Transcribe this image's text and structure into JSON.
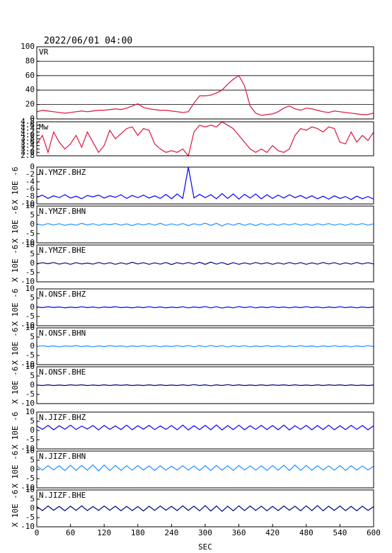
{
  "chart_data": {
    "type": "line",
    "title": "2022/06/01 04:00",
    "xlabel": "SEC",
    "x": [
      0,
      10,
      20,
      30,
      40,
      50,
      60,
      70,
      80,
      90,
      100,
      110,
      120,
      130,
      140,
      150,
      160,
      170,
      180,
      190,
      200,
      210,
      220,
      230,
      240,
      250,
      260,
      270,
      280,
      290,
      300,
      310,
      320,
      330,
      340,
      350,
      360,
      370,
      380,
      390,
      400,
      410,
      420,
      430,
      440,
      450,
      460,
      470,
      480,
      490,
      500,
      510,
      520,
      530,
      540,
      550,
      560,
      570,
      580,
      590,
      600
    ],
    "xlim": [
      0,
      600
    ],
    "xticks": [
      0,
      60,
      120,
      180,
      240,
      300,
      360,
      420,
      480,
      540,
      600
    ],
    "panels": [
      {
        "label": "VR",
        "ylim": [
          0,
          100
        ],
        "yticks": [
          0,
          20,
          40,
          60,
          80,
          100
        ],
        "grid": true,
        "series": [
          {
            "color": "#dc143c",
            "values": [
              10,
              12,
              11,
              10,
              9,
              8,
              9,
              10,
              11,
              10,
              11,
              12,
              12,
              13,
              14,
              13,
              15,
              18,
              21,
              16,
              14,
              13,
              12,
              12,
              11,
              10,
              9,
              10,
              22,
              32,
              32,
              33,
              36,
              40,
              48,
              55,
              60,
              46,
              18,
              8,
              5,
              6,
              7,
              10,
              15,
              18,
              14,
              12,
              15,
              14,
              12,
              10,
              9,
              11,
              10,
              9,
              8,
              7,
              6,
              6,
              8
            ]
          }
        ]
      },
      {
        "label": "Mw",
        "ylim": [
          2.8,
          4.8
        ],
        "yticks": [
          2.8,
          {
            "value": 3,
            "label": "3.0"
          },
          3.2,
          3.4,
          3.6,
          3.8,
          {
            "value": 4,
            "label": "4.0"
          },
          4.2,
          4.4,
          4.6,
          4.8
        ],
        "grid": false,
        "series": [
          {
            "color": "#dc143c",
            "values": [
              3.5,
              4.0,
              3.0,
              4.2,
              3.6,
              3.2,
              3.5,
              4.0,
              3.3,
              4.2,
              3.6,
              3.0,
              3.4,
              4.3,
              3.8,
              4.1,
              4.4,
              4.5,
              4.0,
              4.4,
              4.3,
              3.5,
              3.2,
              3.0,
              3.1,
              3.0,
              3.2,
              2.8,
              4.2,
              4.6,
              4.5,
              4.6,
              4.5,
              4.8,
              4.6,
              4.4,
              4.0,
              3.6,
              3.2,
              3.0,
              3.2,
              3.0,
              3.4,
              3.1,
              3.0,
              3.2,
              4.0,
              4.4,
              4.3,
              4.5,
              4.4,
              4.2,
              4.5,
              4.4,
              3.6,
              3.5,
              4.2,
              3.6,
              4.0,
              3.7,
              4.2
            ]
          }
        ]
      },
      {
        "label": "N.YMZF.BHZ",
        "ylabel": "X 10E -6",
        "ylim": [
          -10,
          0
        ],
        "yticks": [
          -10,
          -8,
          -6,
          -4,
          -2,
          0
        ],
        "grid": false,
        "series": [
          {
            "color": "#0000ff",
            "values": [
              -8.2,
              -7.6,
              -8.5,
              -7.8,
              -8.3,
              -7.5,
              -8.4,
              -7.9,
              -8.6,
              -7.7,
              -8.1,
              -7.6,
              -8.4,
              -7.8,
              -8.2,
              -7.5,
              -8.5,
              -7.7,
              -8.3,
              -7.6,
              -8.4,
              -7.8,
              -8.5,
              -7.4,
              -8.6,
              -7.3,
              -8.5,
              0,
              -8.4,
              -7.4,
              -8.3,
              -7.5,
              -8.6,
              -7.2,
              -8.5,
              -7.3,
              -8.7,
              -7.4,
              -8.4,
              -7.3,
              -8.6,
              -7.5,
              -8.5,
              -7.6,
              -8.4,
              -7.5,
              -8.3,
              -7.7,
              -8.5,
              -7.8,
              -8.6,
              -7.9,
              -8.7,
              -7.8,
              -8.5,
              -8.0,
              -8.8,
              -7.9,
              -8.6,
              -8.0,
              -8.7
            ]
          }
        ]
      },
      {
        "label": "N.YMZF.BHN",
        "ylabel": "X 10E -6",
        "ylim": [
          -10,
          10
        ],
        "yticks": [
          -10,
          -5,
          0,
          5,
          10
        ],
        "grid": false,
        "series": [
          {
            "color": "#1e90ff",
            "values": [
              0.3,
              -0.4,
              0.5,
              -0.3,
              0.4,
              -0.5,
              0.2,
              -0.4,
              0.6,
              -0.3,
              0.4,
              -0.5,
              0.3,
              -0.2,
              0.5,
              -0.4,
              0.3,
              -0.6,
              0.4,
              -0.3,
              0.5,
              -0.4,
              0.6,
              -0.5,
              0.3,
              -0.4,
              0.5,
              -0.6,
              0.4,
              -0.3,
              0.7,
              -0.5,
              0.6,
              -0.8,
              0.5,
              -0.4,
              0.6,
              -0.5,
              0.4,
              -0.6,
              0.5,
              -0.4,
              0.3,
              -0.5,
              0.4,
              -0.3,
              0.5,
              -0.4,
              0.3,
              -0.5,
              0.4,
              -0.3,
              0.5,
              -0.4,
              0.3,
              -0.5,
              0.4,
              -0.3,
              0.5,
              -0.4,
              0.3
            ]
          }
        ]
      },
      {
        "label": "N.YMZF.BHE",
        "ylabel": "X 10E -6",
        "ylim": [
          -10,
          10
        ],
        "yticks": [
          -10,
          -5,
          0,
          5,
          10
        ],
        "grid": false,
        "series": [
          {
            "color": "#000080",
            "values": [
              -0.3,
              0.4,
              -0.2,
              0.5,
              -0.4,
              0.3,
              -0.5,
              0.4,
              -0.3,
              0.2,
              -0.4,
              0.5,
              -0.3,
              0.4,
              -0.5,
              0.3,
              -0.4,
              0.6,
              -0.3,
              0.4,
              -0.5,
              0.3,
              -0.4,
              0.5,
              -0.6,
              0.4,
              -0.3,
              0.5,
              -0.4,
              0.6,
              -0.5,
              0.7,
              -0.4,
              0.5,
              -0.6,
              0.4,
              -0.5,
              0.3,
              -0.4,
              0.5,
              -0.3,
              0.4,
              -0.5,
              0.3,
              -0.4,
              0.5,
              -0.3,
              0.4,
              -0.5,
              0.3,
              -0.4,
              0.5,
              -0.3,
              0.4,
              -0.5,
              0.3,
              -0.4,
              0.5,
              -0.3,
              0.4,
              -0.3
            ]
          }
        ]
      },
      {
        "label": "N.ONSF.BHZ",
        "ylabel": "X 10E -6",
        "ylim": [
          -10,
          10
        ],
        "yticks": [
          -10,
          -5,
          0,
          5,
          10
        ],
        "grid": false,
        "series": [
          {
            "color": "#0000ff",
            "values": [
              0.2,
              -0.2,
              0.3,
              -0.1,
              0.2,
              -0.3,
              0.1,
              -0.2,
              0.3,
              -0.2,
              0.2,
              -0.3,
              0.2,
              -0.1,
              0.3,
              -0.2,
              0.1,
              -0.3,
              0.2,
              -0.2,
              0.3,
              -0.2,
              0.2,
              -0.3,
              0.1,
              -0.2,
              0.3,
              -0.3,
              0.2,
              -0.2,
              0.4,
              -0.3,
              0.3,
              -0.4,
              0.2,
              -0.3,
              0.4,
              -0.2,
              0.3,
              -0.3,
              0.2,
              -0.2,
              0.3,
              -0.2,
              0.2,
              -0.3,
              0.2,
              -0.2,
              0.3,
              -0.2,
              0.2,
              -0.3,
              0.2,
              -0.2,
              0.3,
              -0.2,
              0.2,
              -0.3,
              0.2,
              -0.2,
              0.2
            ]
          }
        ]
      },
      {
        "label": "N.ONSF.BHN",
        "ylabel": "X 10E -6",
        "ylim": [
          -10,
          10
        ],
        "yticks": [
          -10,
          -5,
          0,
          5,
          10
        ],
        "grid": false,
        "series": [
          {
            "color": "#1e90ff",
            "values": [
              -0.2,
              0.3,
              -0.2,
              0.2,
              -0.3,
              0.2,
              -0.1,
              0.3,
              -0.2,
              0.2,
              -0.3,
              0.2,
              -0.2,
              0.3,
              -0.1,
              0.2,
              -0.3,
              0.2,
              -0.2,
              0.3,
              -0.2,
              0.3,
              -0.3,
              0.2,
              -0.2,
              0.3,
              -0.2,
              0.4,
              -0.3,
              0.3,
              -0.3,
              0.4,
              -0.2,
              0.3,
              -0.4,
              0.3,
              -0.2,
              0.3,
              -0.3,
              0.2,
              -0.2,
              0.3,
              -0.2,
              0.2,
              -0.3,
              0.2,
              -0.2,
              0.3,
              -0.2,
              0.2,
              -0.3,
              0.2,
              -0.2,
              0.3,
              -0.2,
              0.2,
              -0.3,
              0.2,
              -0.2,
              0.3,
              -0.2
            ]
          }
        ]
      },
      {
        "label": "N.ONSF.BHE",
        "ylabel": "X 10E -6",
        "ylim": [
          -10,
          10
        ],
        "yticks": [
          -10,
          -5,
          0,
          5,
          10
        ],
        "grid": false,
        "series": [
          {
            "color": "#000080",
            "values": [
              0.1,
              -0.2,
              0.2,
              -0.2,
              0.1,
              -0.2,
              0.2,
              -0.1,
              0.2,
              -0.2,
              0.1,
              -0.2,
              0.2,
              -0.2,
              0.2,
              -0.1,
              0.2,
              -0.2,
              0.1,
              -0.2,
              0.2,
              -0.2,
              0.2,
              -0.2,
              0.1,
              -0.2,
              0.2,
              -0.2,
              0.3,
              -0.2,
              0.2,
              -0.3,
              0.2,
              -0.2,
              0.3,
              -0.2,
              0.2,
              -0.2,
              0.1,
              -0.2,
              0.2,
              -0.2,
              0.2,
              -0.1,
              0.2,
              -0.2,
              0.2,
              -0.2,
              0.1,
              -0.2,
              0.2,
              -0.2,
              0.2,
              -0.1,
              0.2,
              -0.2,
              0.2,
              -0.2,
              0.1,
              -0.2,
              0.1
            ]
          }
        ]
      },
      {
        "label": "N.JIZF.BHZ",
        "ylabel": "X 10E -6",
        "ylim": [
          -10,
          10
        ],
        "yticks": [
          -10,
          -5,
          0,
          5,
          10
        ],
        "grid": false,
        "series": [
          {
            "color": "#0000ff",
            "values": [
              2.5,
              0.6,
              2.8,
              0.4,
              2.6,
              0.7,
              2.9,
              0.5,
              2.4,
              0.8,
              2.7,
              0.3,
              2.8,
              0.6,
              2.5,
              0.5,
              2.9,
              0.4,
              2.6,
              0.7,
              2.8,
              0.5,
              2.5,
              0.6,
              2.7,
              0.4,
              2.9,
              0.3,
              2.6,
              0.5,
              2.8,
              0.4,
              3.0,
              0.3,
              2.7,
              0.5,
              2.9,
              0.4,
              2.6,
              0.6,
              2.8,
              0.5,
              2.7,
              0.4,
              2.9,
              0.3,
              2.6,
              0.6,
              2.8,
              0.4,
              2.7,
              0.5,
              2.9,
              0.4,
              2.6,
              0.5,
              2.8,
              0.6,
              2.7,
              0.4,
              2.6
            ]
          }
        ]
      },
      {
        "label": "N.JIZF.BHN",
        "ylabel": "X 10E -6",
        "ylim": [
          -10,
          10
        ],
        "yticks": [
          -10,
          -5,
          0,
          5,
          10
        ],
        "grid": false,
        "series": [
          {
            "color": "#1e90ff",
            "values": [
              1.9,
              -0.4,
              2.1,
              -0.3,
              2.0,
              -0.6,
              2.3,
              -0.5,
              2.2,
              -0.4,
              2.5,
              -0.8,
              2.4,
              -0.6,
              2.2,
              -0.5,
              2.0,
              -0.4,
              2.1,
              -0.3,
              1.9,
              -0.5,
              2.0,
              -0.4,
              1.8,
              -0.3,
              2.0,
              -0.4,
              1.9,
              -0.5,
              2.1,
              -0.6,
              2.2,
              -0.4,
              2.0,
              -0.5,
              2.1,
              -0.3,
              1.9,
              -0.4,
              2.0,
              -0.5,
              2.1,
              -0.4,
              2.3,
              -0.6,
              2.4,
              -0.5,
              2.2,
              -0.4,
              2.0,
              -0.3,
              1.9,
              -0.4,
              2.1,
              -0.5,
              2.0,
              -0.4,
              1.9,
              -0.3,
              1.8
            ]
          }
        ]
      },
      {
        "label": "N.JIZF.BHE",
        "ylabel": "X 10E -6",
        "ylim": [
          -10,
          10
        ],
        "yticks": [
          -10,
          -5,
          0,
          5,
          10
        ],
        "grid": false,
        "series": [
          {
            "color": "#000080",
            "values": [
              1.0,
              -1.2,
              1.3,
              -1.0,
              1.1,
              -1.3,
              1.2,
              -1.1,
              1.4,
              -1.2,
              1.0,
              -1.1,
              1.3,
              -1.0,
              1.2,
              -1.3,
              1.1,
              -1.2,
              1.0,
              -1.4,
              1.2,
              -1.1,
              1.3,
              -1.0,
              1.1,
              -1.2,
              1.4,
              -1.1,
              1.2,
              -1.3,
              1.5,
              -1.4,
              1.3,
              -1.6,
              1.2,
              -1.3,
              1.4,
              -1.2,
              1.3,
              -1.1,
              1.2,
              -1.3,
              1.1,
              -1.2,
              1.3,
              -1.0,
              1.2,
              -1.3,
              1.4,
              -1.2,
              1.5,
              -1.3,
              1.2,
              -1.1,
              1.3,
              -1.2,
              1.1,
              -1.3,
              1.2,
              -1.1,
              1.0
            ]
          }
        ]
      }
    ]
  }
}
